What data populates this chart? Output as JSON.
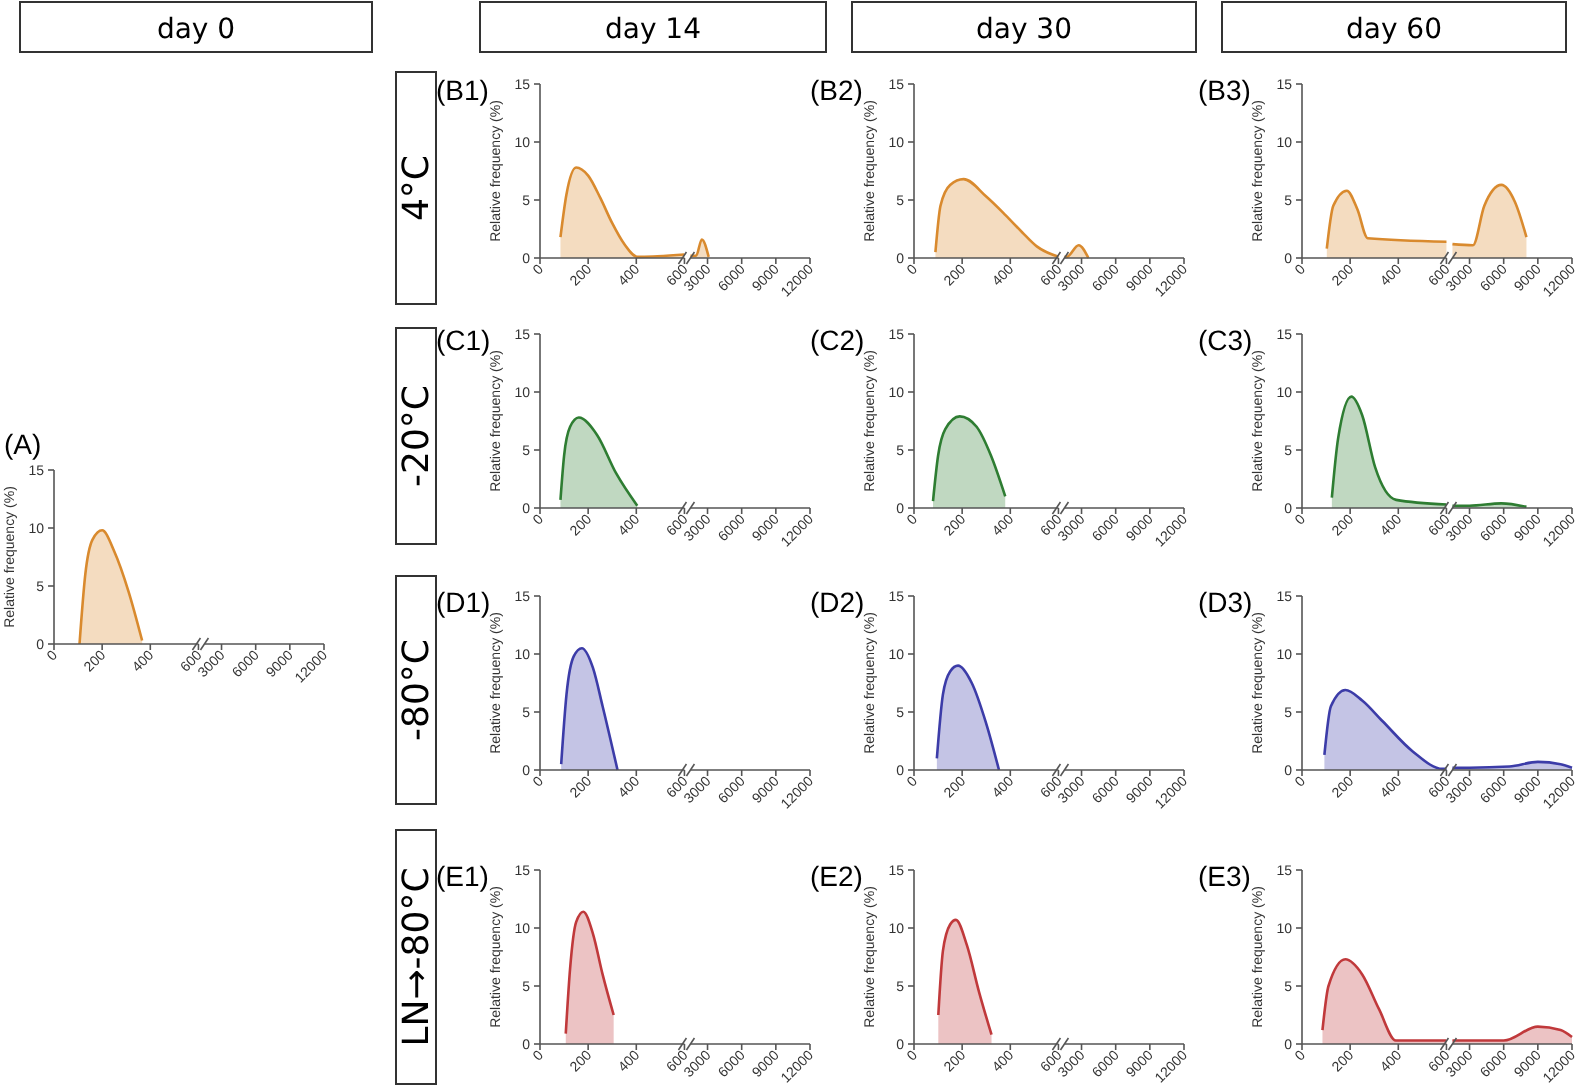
{
  "chart_data": [
    {
      "type": "other",
      "annotations": [
        "day 0",
        "day 14",
        "day 30",
        "day 60",
        "4°C",
        "-20°C",
        "-80°C",
        "LN→-80°C"
      ]
    },
    {
      "type": "area",
      "title": "(A)",
      "ylabel": "Relative frequency (%)",
      "xlim": [
        0,
        600
      ],
      "xticks": [
        0,
        200,
        400,
        600
      ],
      "ylim": [
        0,
        15
      ],
      "yticks": [
        0,
        5,
        10,
        15
      ],
      "series": [
        {
          "color": "#d98a2e",
          "x": [
            106,
            130,
            160,
            200,
            250,
            310,
            366
          ],
          "values": [
            0,
            6.0,
            9.0,
            9.8,
            8.0,
            4.5,
            0.3
          ]
        }
      ]
    },
    {
      "type": "area",
      "xlim": [
        1500,
        12000
      ],
      "xticks": [
        3000,
        6000,
        9000,
        12000
      ],
      "ylim": [
        0,
        15
      ],
      "tick_labels": "x"
    },
    {
      "type": "area",
      "title": "(B1)",
      "ylabel": "Relative frequency (%)",
      "xlim": [
        0,
        600
      ],
      "xticks": [
        0,
        200,
        400,
        600
      ],
      "ylim": [
        0,
        15
      ],
      "yticks": [
        0,
        5,
        10,
        15
      ],
      "series": [
        {
          "color": "#d98a2e",
          "x": [
            85,
            110,
            150,
            200,
            250,
            300,
            350,
            405,
            600
          ],
          "values": [
            1.8,
            5.5,
            7.8,
            7.1,
            5.2,
            3.0,
            1.2,
            0.1,
            0.3
          ]
        }
      ]
    },
    {
      "type": "area",
      "xlim": [
        1500,
        12000
      ],
      "xticks": [
        3000,
        6000,
        9000,
        12000
      ],
      "ylim": [
        0,
        15
      ],
      "tick_labels": "x",
      "series": [
        {
          "color": "#d98a2e",
          "x": [
            1500,
            2000,
            2500,
            3100
          ],
          "values": [
            0.2,
            0.2,
            1.6,
            0.1
          ]
        }
      ]
    },
    {
      "type": "area",
      "title": "(B2)",
      "ylabel": "Relative frequency (%)",
      "xlim": [
        0,
        600
      ],
      "xticks": [
        0,
        200,
        400,
        600
      ],
      "ylim": [
        0,
        15
      ],
      "yticks": [
        0,
        5,
        10,
        15
      ],
      "series": [
        {
          "color": "#d98a2e",
          "x": [
            89,
            110,
            150,
            206,
            300,
            380,
            450,
            510,
            600
          ],
          "values": [
            0.5,
            4.5,
            6.3,
            6.8,
            5.3,
            3.7,
            2.2,
            1.0,
            0.1
          ]
        }
      ]
    },
    {
      "type": "area",
      "xlim": [
        1500,
        12000
      ],
      "xticks": [
        3000,
        6000,
        9000,
        12000
      ],
      "ylim": [
        0,
        15
      ],
      "tick_labels": "x",
      "series": [
        {
          "color": "#d98a2e",
          "x": [
            1500,
            1700,
            2750,
            3600
          ],
          "values": [
            0.1,
            0.1,
            1.1,
            0
          ]
        }
      ]
    },
    {
      "type": "area",
      "title": "(B3)",
      "ylabel": "Relative frequency (%)",
      "xlim": [
        0,
        600
      ],
      "xticks": [
        0,
        200,
        400,
        600
      ],
      "ylim": [
        0,
        15
      ],
      "yticks": [
        0,
        5,
        10,
        15
      ],
      "series": [
        {
          "color": "#d98a2e",
          "x": [
            103,
            130,
            186,
            230,
            273,
            600
          ],
          "values": [
            0.8,
            4.5,
            5.8,
            4.2,
            1.7,
            1.4
          ]
        }
      ]
    },
    {
      "type": "area",
      "xlim": [
        1500,
        12000
      ],
      "xticks": [
        3000,
        6000,
        9000,
        12000
      ],
      "ylim": [
        0,
        15
      ],
      "tick_labels": "x",
      "series": [
        {
          "color": "#d98a2e",
          "x": [
            1500,
            3300,
            4300,
            5800,
            7000,
            8000
          ],
          "values": [
            1.2,
            1.1,
            4.5,
            6.3,
            4.8,
            1.8
          ]
        }
      ]
    },
    {
      "type": "area",
      "title": "(C1)",
      "ylabel": "Relative frequency (%)",
      "xlim": [
        0,
        600
      ],
      "xticks": [
        0,
        200,
        400,
        600
      ],
      "ylim": [
        0,
        15
      ],
      "yticks": [
        0,
        5,
        10,
        15
      ],
      "series": [
        {
          "color": "#2e7d32",
          "x": [
            85,
            100,
            125,
            161,
            237,
            316,
            404
          ],
          "values": [
            0.7,
            4.5,
            7.0,
            7.8,
            6.3,
            3.0,
            0.2
          ]
        }
      ]
    },
    {
      "type": "area",
      "xlim": [
        1500,
        12000
      ],
      "xticks": [
        3000,
        6000,
        9000,
        12000
      ],
      "ylim": [
        0,
        15
      ],
      "tick_labels": "x"
    },
    {
      "type": "area",
      "title": "(C2)",
      "ylabel": "Relative frequency (%)",
      "xlim": [
        0,
        600
      ],
      "xticks": [
        0,
        200,
        400,
        600
      ],
      "ylim": [
        0,
        15
      ],
      "yticks": [
        0,
        5,
        10,
        15
      ],
      "series": [
        {
          "color": "#2e7d32",
          "x": [
            79,
            100,
            130,
            190,
            260,
            320,
            379
          ],
          "values": [
            0.6,
            4.5,
            6.8,
            7.9,
            7.0,
            4.5,
            1.0
          ]
        }
      ]
    },
    {
      "type": "area",
      "xlim": [
        1500,
        12000
      ],
      "xticks": [
        3000,
        6000,
        9000,
        12000
      ],
      "ylim": [
        0,
        15
      ],
      "tick_labels": "x"
    },
    {
      "type": "area",
      "title": "(C3)",
      "ylabel": "Relative frequency (%)",
      "xlim": [
        0,
        600
      ],
      "xticks": [
        0,
        200,
        400,
        600
      ],
      "ylim": [
        0,
        15
      ],
      "yticks": [
        0,
        5,
        10,
        15
      ],
      "series": [
        {
          "color": "#2e7d32",
          "x": [
            124,
            150,
            205,
            250,
            304,
            391,
            600
          ],
          "values": [
            0.9,
            6.0,
            9.6,
            8.0,
            3.5,
            0.7,
            0.3
          ]
        }
      ]
    },
    {
      "type": "area",
      "xlim": [
        1500,
        12000
      ],
      "xticks": [
        3000,
        6000,
        9000,
        12000
      ],
      "ylim": [
        0,
        15
      ],
      "tick_labels": "x",
      "series": [
        {
          "color": "#2e7d32",
          "x": [
            1500,
            3000,
            5800,
            8000
          ],
          "values": [
            0.2,
            0.2,
            0.4,
            0.1
          ]
        }
      ]
    },
    {
      "type": "area",
      "title": "(D1)",
      "ylabel": "Relative frequency (%)",
      "xlim": [
        0,
        600
      ],
      "xticks": [
        0,
        200,
        400,
        600
      ],
      "ylim": [
        0,
        15
      ],
      "yticks": [
        0,
        5,
        10,
        15
      ],
      "series": [
        {
          "color": "#3c3ca8",
          "x": [
            88,
            110,
            140,
            174,
            220,
            260,
            322
          ],
          "values": [
            0.5,
            6.5,
            9.8,
            10.5,
            8.8,
            5.5,
            0
          ]
        }
      ]
    },
    {
      "type": "area",
      "xlim": [
        1500,
        12000
      ],
      "xticks": [
        3000,
        6000,
        9000,
        12000
      ],
      "ylim": [
        0,
        15
      ],
      "tick_labels": "x"
    },
    {
      "type": "area",
      "title": "(D2)",
      "ylabel": "Relative frequency (%)",
      "xlim": [
        0,
        600
      ],
      "xticks": [
        0,
        200,
        400,
        600
      ],
      "ylim": [
        0,
        15
      ],
      "yticks": [
        0,
        5,
        10,
        15
      ],
      "series": [
        {
          "color": "#3c3ca8",
          "x": [
            95,
            120,
            150,
            183,
            240,
            300,
            353
          ],
          "values": [
            1.0,
            6.5,
            8.5,
            9.0,
            7.5,
            4.0,
            0
          ]
        }
      ]
    },
    {
      "type": "area",
      "xlim": [
        1500,
        12000
      ],
      "xticks": [
        3000,
        6000,
        9000,
        12000
      ],
      "ylim": [
        0,
        15
      ],
      "tick_labels": "x"
    },
    {
      "type": "area",
      "title": "(D3)",
      "ylabel": "Relative frequency (%)",
      "xlim": [
        0,
        600
      ],
      "xticks": [
        0,
        200,
        400,
        600
      ],
      "ylim": [
        0,
        15
      ],
      "yticks": [
        0,
        5,
        10,
        15
      ],
      "series": [
        {
          "color": "#3c3ca8",
          "x": [
            93,
            120,
            180,
            250,
            335,
            460,
            584,
            600
          ],
          "values": [
            1.3,
            5.5,
            6.9,
            6.0,
            4.2,
            1.6,
            0.1,
            0.1
          ]
        }
      ]
    },
    {
      "type": "area",
      "xlim": [
        1500,
        12000
      ],
      "xticks": [
        3000,
        6000,
        9000,
        12000
      ],
      "ylim": [
        0,
        15
      ],
      "tick_labels": "x",
      "series": [
        {
          "color": "#3c3ca8",
          "x": [
            1500,
            3000,
            6500,
            9000,
            11000,
            12000
          ],
          "values": [
            0.2,
            0.2,
            0.3,
            0.7,
            0.5,
            0.2
          ]
        }
      ]
    },
    {
      "type": "area",
      "title": "(E1)",
      "ylabel": "Relative frequency (%)",
      "xlim": [
        0,
        600
      ],
      "xticks": [
        0,
        200,
        400,
        600
      ],
      "ylim": [
        0,
        15
      ],
      "yticks": [
        0,
        5,
        10,
        15
      ],
      "series": [
        {
          "color": "#c0393b",
          "x": [
            107,
            125,
            150,
            180,
            220,
            260,
            306
          ],
          "values": [
            0.9,
            6.5,
            10.5,
            11.4,
            9.5,
            6.0,
            2.5
          ]
        }
      ]
    },
    {
      "type": "area",
      "xlim": [
        1500,
        12000
      ],
      "xticks": [
        3000,
        6000,
        9000,
        12000
      ],
      "ylim": [
        0,
        15
      ],
      "tick_labels": "x"
    },
    {
      "type": "area",
      "title": "(E2)",
      "ylabel": "Relative frequency (%)",
      "xlim": [
        0,
        600
      ],
      "xticks": [
        0,
        200,
        400,
        600
      ],
      "ylim": [
        0,
        15
      ],
      "yticks": [
        0,
        5,
        10,
        15
      ],
      "series": [
        {
          "color": "#c0393b",
          "x": [
            101,
            120,
            150,
            174,
            220,
            270,
            322
          ],
          "values": [
            2.5,
            8.0,
            10.3,
            10.7,
            8.5,
            4.5,
            0.8
          ]
        }
      ]
    },
    {
      "type": "area",
      "xlim": [
        1500,
        12000
      ],
      "xticks": [
        3000,
        6000,
        9000,
        12000
      ],
      "ylim": [
        0,
        15
      ],
      "tick_labels": "x"
    },
    {
      "type": "area",
      "title": "(E3)",
      "ylabel": "Relative frequency (%)",
      "xlim": [
        0,
        600
      ],
      "xticks": [
        0,
        200,
        400,
        600
      ],
      "ylim": [
        0,
        15
      ],
      "yticks": [
        0,
        5,
        10,
        15
      ],
      "series": [
        {
          "color": "#c0393b",
          "x": [
            85,
            110,
            180,
            250,
            320,
            390,
            600
          ],
          "values": [
            1.2,
            5.0,
            7.3,
            6.0,
            3.0,
            0.3,
            0.3
          ]
        }
      ]
    },
    {
      "type": "area",
      "xlim": [
        1500,
        12000
      ],
      "xticks": [
        3000,
        6000,
        9000,
        12000
      ],
      "ylim": [
        0,
        15
      ],
      "tick_labels": "x",
      "series": [
        {
          "color": "#c0393b",
          "x": [
            1500,
            3000,
            6000,
            9000,
            11000,
            12000
          ],
          "values": [
            0.3,
            0.3,
            0.3,
            1.5,
            1.2,
            0.6
          ]
        }
      ]
    }
  ]
}
